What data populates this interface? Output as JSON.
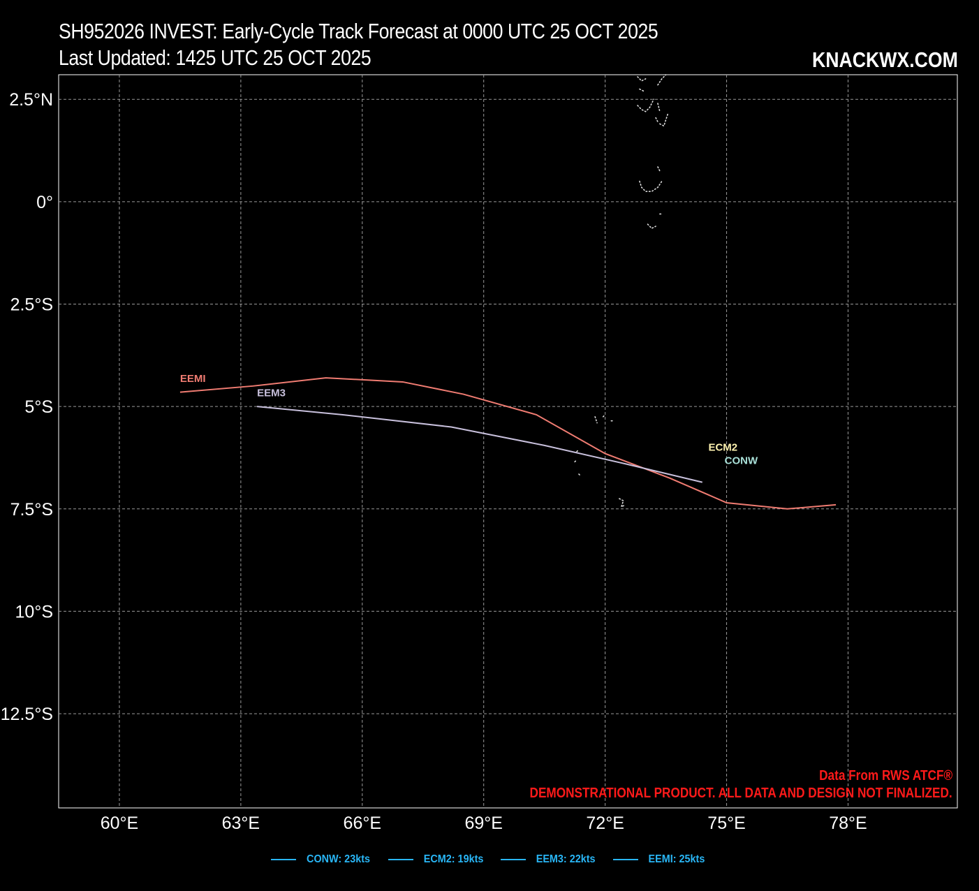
{
  "header": {
    "title_line1": "SH952026 INVEST: Early-Cycle Track Forecast at 0000 UTC 25 OCT 2025",
    "title_line2": "Last Updated: 1425 UTC 25 OCT 2025",
    "brand": "KNACKWX.COM"
  },
  "footer": {
    "credit_line1": "Data From RWS ATCF®",
    "credit_line2": "DEMONSTRATIONAL PRODUCT. ALL DATA AND DESIGN NOT FINALIZED."
  },
  "legend": [
    {
      "label": "CONW: 23kts",
      "color": "#29b6f6"
    },
    {
      "label": "ECM2: 19kts",
      "color": "#29b6f6"
    },
    {
      "label": "EEM3: 22kts",
      "color": "#29b6f6"
    },
    {
      "label": "EEMI: 25kts",
      "color": "#29b6f6"
    }
  ],
  "chart_data": {
    "type": "map",
    "lon_range": [
      58.5,
      80.7
    ],
    "lat_range": [
      -14.8,
      3.1
    ],
    "lon_ticks": [
      60,
      63,
      66,
      69,
      72,
      75,
      78
    ],
    "lat_ticks": [
      2.5,
      0,
      -2.5,
      -5,
      -7.5,
      -10,
      -12.5
    ],
    "lon_tick_labels": [
      "60°E",
      "63°E",
      "66°E",
      "69°E",
      "72°E",
      "75°E",
      "78°E"
    ],
    "lat_tick_labels": [
      "2.5°N",
      "0°",
      "2.5°S",
      "5°S",
      "7.5°S",
      "10°S",
      "12.5°S"
    ],
    "grid": true,
    "tracks": [
      {
        "name": "EEMI",
        "color": "#f07c72",
        "points": [
          [
            61.5,
            -4.65
          ],
          [
            63.3,
            -4.5
          ],
          [
            65.1,
            -4.3
          ],
          [
            67.0,
            -4.4
          ],
          [
            68.5,
            -4.7
          ],
          [
            70.3,
            -5.2
          ],
          [
            72.0,
            -6.15
          ],
          [
            73.6,
            -6.75
          ],
          [
            75.0,
            -7.35
          ],
          [
            76.5,
            -7.5
          ],
          [
            77.7,
            -7.4
          ]
        ]
      },
      {
        "name": "EEM3",
        "color": "#c8c0dc",
        "points": [
          [
            63.4,
            -5.0
          ],
          [
            65.5,
            -5.2
          ],
          [
            68.2,
            -5.5
          ],
          [
            70.5,
            -5.95
          ],
          [
            72.5,
            -6.4
          ],
          [
            74.4,
            -6.85
          ]
        ]
      }
    ],
    "track_labels": [
      {
        "name": "EEMI",
        "color": "#f07c72",
        "lon": 61.5,
        "lat": -4.4
      },
      {
        "name": "EEM3",
        "color": "#c8c0dc",
        "lon": 63.4,
        "lat": -4.75
      },
      {
        "name": "ECM2",
        "color": "#fff3b0",
        "lon": 74.55,
        "lat": -6.08
      },
      {
        "name": "CONW",
        "color": "#a9e0d8",
        "lon": 74.95,
        "lat": -6.4
      }
    ],
    "islands": [
      [
        [
          72.8,
          3.05
        ],
        [
          72.9,
          2.95
        ],
        [
          73.0,
          3.0
        ]
      ],
      [
        [
          72.85,
          2.75
        ],
        [
          72.95,
          2.7
        ]
      ],
      [
        [
          73.3,
          2.85
        ],
        [
          73.4,
          3.0
        ],
        [
          73.5,
          3.1
        ]
      ],
      [
        [
          72.8,
          2.35
        ],
        [
          72.9,
          2.25
        ],
        [
          73.0,
          2.2
        ],
        [
          73.1,
          2.3
        ],
        [
          73.2,
          2.5
        ]
      ],
      [
        [
          73.3,
          2.4
        ],
        [
          73.35,
          2.2
        ]
      ],
      [
        [
          73.35,
          1.9
        ],
        [
          73.45,
          1.85
        ],
        [
          73.5,
          2.0
        ],
        [
          73.55,
          2.15
        ]
      ],
      [
        [
          73.25,
          2.05
        ],
        [
          73.3,
          1.95
        ]
      ],
      [
        [
          72.85,
          0.5
        ],
        [
          72.9,
          0.35
        ],
        [
          73.0,
          0.25
        ],
        [
          73.15,
          0.25
        ],
        [
          73.3,
          0.35
        ],
        [
          73.4,
          0.5
        ]
      ],
      [
        [
          73.3,
          0.85
        ],
        [
          73.35,
          0.75
        ]
      ],
      [
        [
          73.35,
          -0.3
        ],
        [
          73.4,
          -0.3
        ]
      ],
      [
        [
          73.05,
          -0.55
        ],
        [
          73.15,
          -0.65
        ],
        [
          73.25,
          -0.6
        ]
      ],
      [
        [
          71.75,
          -5.25
        ],
        [
          71.8,
          -5.4
        ]
      ],
      [
        [
          71.95,
          -5.25
        ],
        [
          72.0,
          -5.2
        ]
      ],
      [
        [
          72.15,
          -5.35
        ],
        [
          72.2,
          -5.35
        ]
      ],
      [
        [
          71.3,
          -6.1
        ],
        [
          71.35,
          -6.05
        ]
      ],
      [
        [
          71.25,
          -6.35
        ],
        [
          71.3,
          -6.3
        ]
      ],
      [
        [
          71.35,
          -6.65
        ],
        [
          71.4,
          -6.7
        ]
      ],
      [
        [
          72.35,
          -7.25
        ],
        [
          72.45,
          -7.3
        ],
        [
          72.4,
          -7.45
        ],
        [
          72.5,
          -7.4
        ]
      ]
    ]
  }
}
